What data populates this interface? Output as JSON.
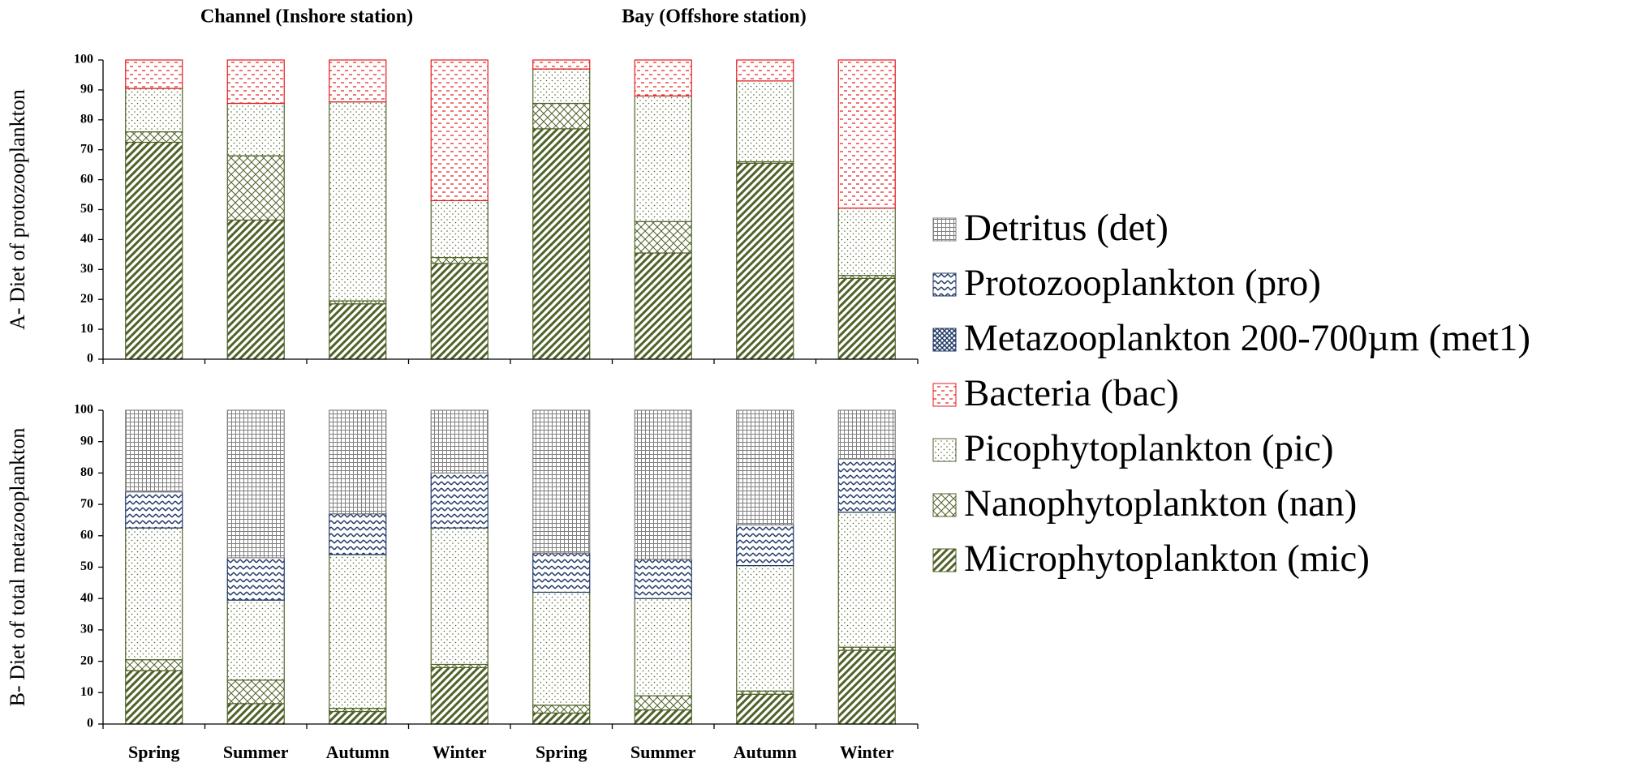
{
  "chart_data": [
    {
      "type": "bar",
      "stacked": true,
      "title": "A- Diet of protozooplankton",
      "group_labels": [
        "Channel (Inshore station)",
        "Bay (Offshore station)"
      ],
      "categories": [
        "Spring",
        "Summer",
        "Autumn",
        "Winter",
        "Spring",
        "Summer",
        "Autumn",
        "Winter"
      ],
      "ylim": [
        0,
        100
      ],
      "yticks": [
        0,
        10,
        20,
        30,
        40,
        50,
        60,
        70,
        80,
        90,
        100
      ],
      "series": [
        {
          "name": "Microphytoplankton (mic)",
          "color": "#4f6228",
          "pattern": "diagonal",
          "values": [
            72.5,
            46.5,
            18.5,
            32,
            77,
            35.5,
            65.5,
            27
          ]
        },
        {
          "name": "Nanophytoplankton (nan)",
          "color": "#4f6228",
          "pattern": "crosshatch",
          "values": [
            3.5,
            21.5,
            1,
            2,
            8.5,
            10.5,
            0.5,
            1
          ]
        },
        {
          "name": "Picophytoplankton (pic)",
          "color": "#4f6228",
          "pattern": "dots",
          "values": [
            14.5,
            17.5,
            66.5,
            19,
            11.5,
            42,
            27,
            22.5
          ]
        },
        {
          "name": "Bacteria (bac)",
          "color": "#e41a1c",
          "pattern": "dashes",
          "values": [
            9.5,
            14.5,
            14,
            47,
            3,
            12,
            7,
            49.5
          ]
        }
      ]
    },
    {
      "type": "bar",
      "stacked": true,
      "title": "B- Diet of total metazooplankton",
      "categories": [
        "Spring",
        "Summer",
        "Autumn",
        "Winter",
        "Spring",
        "Summer",
        "Autumn",
        "Winter"
      ],
      "ylim": [
        0,
        100
      ],
      "yticks": [
        0,
        10,
        20,
        30,
        40,
        50,
        60,
        70,
        80,
        90,
        100
      ],
      "series": [
        {
          "name": "Microphytoplankton (mic)",
          "color": "#4f6228",
          "pattern": "diagonal",
          "values": [
            17,
            6.5,
            4,
            18,
            3.5,
            4.5,
            9.5,
            23.5
          ]
        },
        {
          "name": "Nanophytoplankton (nan)",
          "color": "#4f6228",
          "pattern": "crosshatch",
          "values": [
            3.5,
            7.5,
            1,
            1,
            2.5,
            4.5,
            1,
            1
          ]
        },
        {
          "name": "Picophytoplankton (pic)",
          "color": "#4f6228",
          "pattern": "dots",
          "values": [
            42,
            25.5,
            49,
            43.5,
            36,
            31,
            40,
            43
          ]
        },
        {
          "name": "Protozooplankton (pro)",
          "color": "#1f3864",
          "pattern": "zigzag",
          "values": [
            11.5,
            13.5,
            13,
            17.5,
            12.5,
            12.5,
            13,
            17
          ]
        },
        {
          "name": "Detritus  (det)",
          "color": "#808080",
          "pattern": "grid",
          "values": [
            26,
            47,
            33,
            20,
            45.5,
            47.5,
            36.5,
            15.5
          ]
        }
      ]
    }
  ],
  "legend": [
    {
      "name": "Detritus  (det)",
      "color": "#808080",
      "pattern": "grid"
    },
    {
      "name": "Protozooplankton (pro)",
      "color": "#1f3864",
      "pattern": "zigzag"
    },
    {
      "name": "Metazooplankton 200-700µm (met1)",
      "color": "#1f3864",
      "pattern": "xhatch"
    },
    {
      "name": "Bacteria (bac)",
      "color": "#e41a1c",
      "pattern": "dashes"
    },
    {
      "name": "Picophytoplankton (pic)",
      "color": "#4f6228",
      "pattern": "dots"
    },
    {
      "name": "Nanophytoplankton (nan)",
      "color": "#4f6228",
      "pattern": "crosshatch"
    },
    {
      "name": "Microphytoplankton (mic)",
      "color": "#4f6228",
      "pattern": "diagonal"
    }
  ]
}
